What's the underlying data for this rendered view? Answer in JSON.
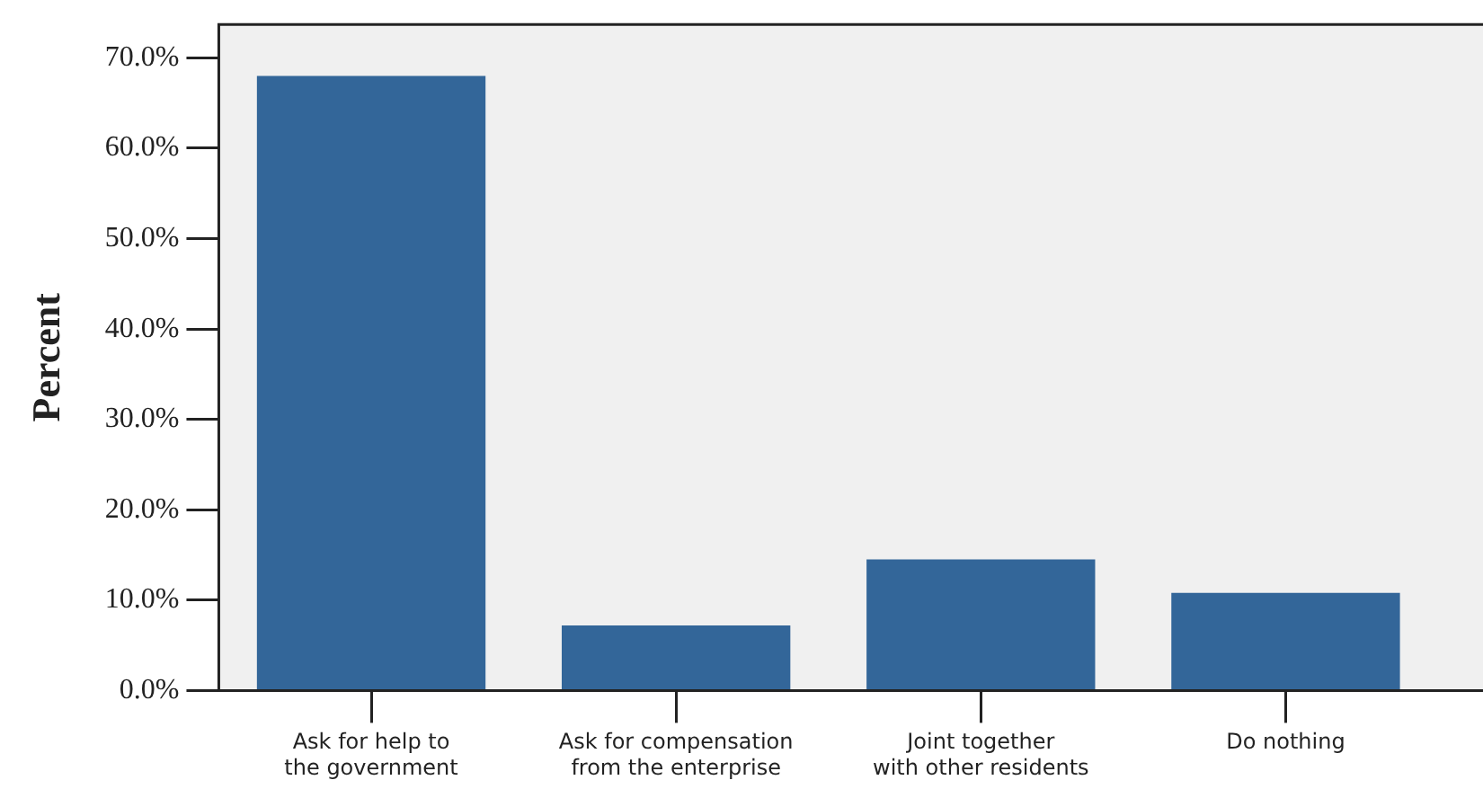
{
  "chart_data": {
    "type": "bar",
    "ylabel": "Percent",
    "categories": [
      "Ask for help to\nthe government",
      "Ask for compensation\nfrom the enterprise",
      "Joint together\nwith other residents",
      "Do nothing"
    ],
    "values": [
      68.0,
      7.2,
      14.5,
      10.8
    ],
    "color": "#336699",
    "ylim": [
      0,
      73.7
    ],
    "yticks": [
      {
        "value": 0,
        "label": "0.0%"
      },
      {
        "value": 10,
        "label": "10.0%"
      },
      {
        "value": 20,
        "label": "20.0%"
      },
      {
        "value": 30,
        "label": "30.0%"
      },
      {
        "value": 40,
        "label": "40.0%"
      },
      {
        "value": 50,
        "label": "50.0%"
      },
      {
        "value": 60,
        "label": "60.0%"
      },
      {
        "value": 70,
        "label": "70.0%"
      }
    ]
  }
}
